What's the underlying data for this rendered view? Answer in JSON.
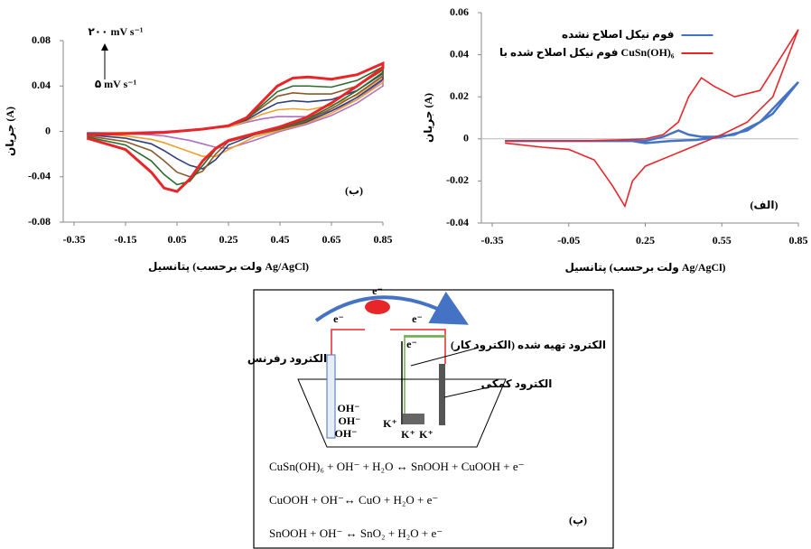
{
  "chart_data": [
    {
      "type": "line",
      "panel_label": "(ب)",
      "y_label": "جریان (A)",
      "x_label": "پتانسیل (ولت برحسب Ag/AgCl)",
      "annotations": [
        "۲۰۰ mV s⁻¹",
        "۵ mV s⁻¹"
      ],
      "xlim": [
        -0.35,
        0.85
      ],
      "xticks": [
        -0.35,
        -0.15,
        0.05,
        0.25,
        0.45,
        0.65,
        0.85
      ],
      "ylim": [
        -0.08,
        0.08
      ],
      "yticks": [
        -0.08,
        -0.04,
        0,
        0.04,
        0.08
      ],
      "x": [
        -0.3,
        -0.15,
        0,
        0.15,
        0.25,
        0.32,
        0.38,
        0.44,
        0.5,
        0.56,
        0.65,
        0.75,
        0.85,
        0.85,
        0.75,
        0.65,
        0.55,
        0.45,
        0.35,
        0.25,
        0.2,
        0.15,
        0.1,
        0.05,
        0,
        -0.05,
        -0.15,
        -0.3
      ],
      "series": [
        {
          "color": "#b070c0",
          "values": [
            -0.001,
            -0.001,
            0,
            0.002,
            0.004,
            0.008,
            0.011,
            0.013,
            0.013,
            0.013,
            0.018,
            0.028,
            0.045,
            0.04,
            0.025,
            0.014,
            0.006,
            0,
            -0.008,
            -0.015,
            -0.014,
            -0.011,
            -0.008,
            -0.006,
            -0.004,
            -0.003,
            -0.002,
            -0.001
          ]
        },
        {
          "color": "#f0a030",
          "values": [
            -0.002,
            -0.001,
            -0.001,
            0.002,
            0.004,
            0.009,
            0.015,
            0.019,
            0.02,
            0.019,
            0.023,
            0.032,
            0.048,
            0.043,
            0.028,
            0.016,
            0.007,
            0.001,
            -0.005,
            -0.016,
            -0.022,
            -0.022,
            -0.018,
            -0.014,
            -0.01,
            -0.007,
            -0.004,
            -0.002
          ]
        },
        {
          "color": "#2f3f7f",
          "values": [
            -0.002,
            -0.002,
            -0.001,
            0.002,
            0.005,
            0.01,
            0.018,
            0.025,
            0.027,
            0.026,
            0.028,
            0.036,
            0.051,
            0.046,
            0.03,
            0.018,
            0.008,
            0.002,
            -0.003,
            -0.012,
            -0.025,
            -0.033,
            -0.03,
            -0.024,
            -0.017,
            -0.011,
            -0.006,
            -0.003
          ]
        },
        {
          "color": "#8b5a2b",
          "values": [
            -0.002,
            -0.002,
            -0.001,
            0.002,
            0.005,
            0.011,
            0.021,
            0.031,
            0.034,
            0.033,
            0.033,
            0.04,
            0.054,
            0.049,
            0.033,
            0.02,
            0.009,
            0.002,
            -0.003,
            -0.009,
            -0.02,
            -0.035,
            -0.04,
            -0.036,
            -0.026,
            -0.017,
            -0.009,
            -0.004
          ]
        },
        {
          "color": "#2e6b2e",
          "values": [
            -0.002,
            -0.002,
            -0.001,
            0.002,
            0.005,
            0.011,
            0.023,
            0.035,
            0.04,
            0.04,
            0.039,
            0.045,
            0.057,
            0.052,
            0.036,
            0.022,
            0.01,
            0.003,
            -0.002,
            -0.008,
            -0.016,
            -0.03,
            -0.044,
            -0.047,
            -0.038,
            -0.026,
            -0.012,
            -0.005
          ]
        },
        {
          "color": "#e8262a",
          "line_width": 3,
          "values": [
            -0.003,
            -0.002,
            -0.001,
            0.002,
            0.005,
            0.012,
            0.026,
            0.04,
            0.047,
            0.048,
            0.046,
            0.05,
            0.06,
            0.056,
            0.04,
            0.025,
            0.012,
            0.004,
            -0.002,
            -0.008,
            -0.015,
            -0.026,
            -0.042,
            -0.053,
            -0.05,
            -0.036,
            -0.016,
            -0.006
          ]
        }
      ]
    },
    {
      "type": "line",
      "panel_label": "(الف)",
      "y_label": "جریان (A)",
      "x_label": "پتانسیل (ولت برحسب Ag/AgCl)",
      "legend": "upper center",
      "zero_line": true,
      "xlim": [
        -0.35,
        0.85
      ],
      "xticks": [
        -0.35,
        -0.05,
        0.25,
        0.55,
        0.85
      ],
      "ylim": [
        -0.04,
        0.06
      ],
      "yticks": [
        -0.04,
        -0.02,
        0,
        0.02,
        0.04,
        0.06
      ],
      "x": [
        -0.3,
        -0.15,
        0,
        0.15,
        0.25,
        0.32,
        0.38,
        0.42,
        0.47,
        0.52,
        0.6,
        0.7,
        0.85,
        0.85,
        0.75,
        0.65,
        0.55,
        0.45,
        0.35,
        0.25,
        0.2,
        0.17,
        0.12,
        0.05,
        -0.05,
        -0.15,
        -0.3
      ],
      "series": [
        {
          "name": "فوم نیکل اصلاح نشده",
          "color": "#4472c4",
          "line_width": 2.5,
          "values": [
            -0.001,
            -0.001,
            -0.001,
            -0.001,
            -0.001,
            0.001,
            0.004,
            0.002,
            0.001,
            0.001,
            0.002,
            0.008,
            0.027,
            0.027,
            0.012,
            0.004,
            0.001,
            -0.0005,
            -0.001,
            -0.002,
            -0.001,
            -0.001,
            -0.001,
            -0.001,
            -0.001,
            -0.001,
            -0.001
          ]
        },
        {
          "name": "فوم نیکل اصلاح شده با CuSn(OH)₆",
          "color": "#e8262a",
          "line_width": 1.6,
          "values": [
            -0.001,
            -0.001,
            -0.001,
            -0.0005,
            0,
            0.002,
            0.008,
            0.02,
            0.029,
            0.025,
            0.02,
            0.023,
            0.052,
            0.052,
            0.02,
            0.008,
            0.002,
            -0.003,
            -0.008,
            -0.013,
            -0.02,
            -0.032,
            -0.022,
            -0.01,
            -0.005,
            -0.004,
            -0.002
          ]
        }
      ]
    }
  ],
  "diagram": {
    "electrons": [
      "e⁻",
      "e⁻",
      "e⁻",
      "e⁻"
    ],
    "electrodes": {
      "reference": "الکترود رفرنس",
      "working": "الکترود تهیه شده (الکترود کار)",
      "counter": "الکترود کمکی"
    },
    "ions": [
      "OH⁻",
      "OH⁻",
      "OH⁻",
      "K⁺",
      "K⁺",
      "K⁺"
    ],
    "equations": [
      "CuSn(OH)₆ + OH⁻ + H₂O ↔ SnOOH + CuOOH + e⁻",
      "CuOOH + OH⁻↔ CuO + H₂O + e⁻",
      "SnOOH + OH⁻ ↔ SnO₂ + H₂O + e⁻"
    ],
    "panel_label": "(پ)"
  }
}
